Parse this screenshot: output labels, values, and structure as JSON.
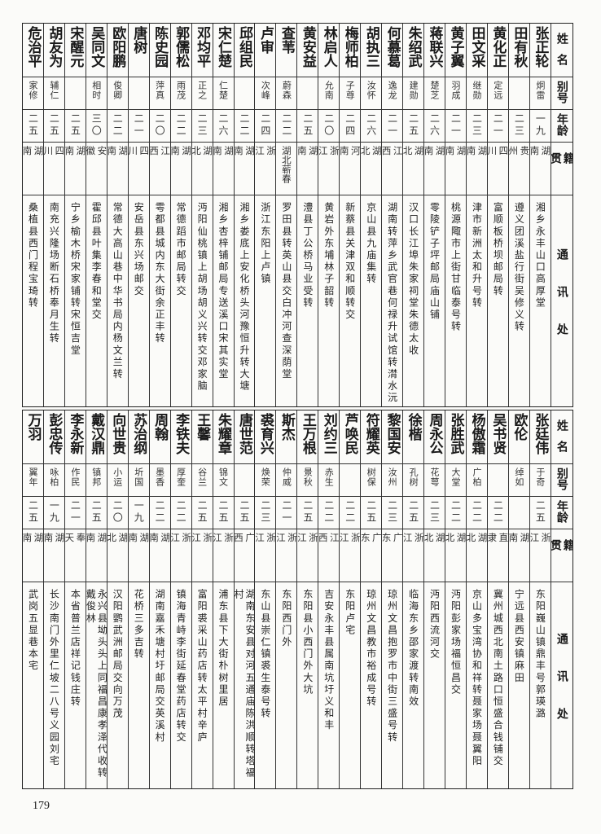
{
  "headers": {
    "name": "姓名",
    "alias": "别号",
    "age": "年龄",
    "origin": "籍贯",
    "address": "通讯处"
  },
  "tables": [
    {
      "rows": [
        {
          "name": "张正轮",
          "alias": "炯雷",
          "age": "一九",
          "origin": "湖南",
          "address": "湘乡永丰山口高厚堂"
        },
        {
          "name": "田有秋",
          "alias": "",
          "age": "二三",
          "origin": "贵州",
          "address": "遵义团溪盐行街吴修义转"
        },
        {
          "name": "黄化正",
          "alias": "定远",
          "age": "二一",
          "origin": "四川",
          "address": "富顺板桥坝邮局转"
        },
        {
          "name": "田文采",
          "alias": "继勋",
          "age": "二三",
          "origin": "湖南",
          "address": "津市新洲太和升号转"
        },
        {
          "name": "黄子翼",
          "alias": "羽成",
          "age": "二一",
          "origin": "湖南",
          "address": "桃源陬市上街甘临泰号转"
        },
        {
          "name": "蒋联兴",
          "alias": "楚芝",
          "age": "二六",
          "origin": "湖南",
          "address": "零陵铲子坪邮局庙山铺"
        },
        {
          "name": "朱绍武",
          "alias": "建勋",
          "age": "二五",
          "origin": "湖北",
          "address": "汉口长江埠朱家祠堂朱德太收"
        },
        {
          "name": "何慕葛",
          "alias": "逸龙",
          "age": "二一",
          "origin": "江西",
          "address": "湖南转萍乡武官巷何禄升试馆转潸水沅"
        },
        {
          "name": "胡执三",
          "alias": "汝怀",
          "age": "二六",
          "origin": "湖北",
          "address": "京山县九庙集转"
        },
        {
          "name": "梅师柏",
          "alias": "子尊",
          "age": "二四",
          "origin": "河南",
          "address": "新蔡县关津双和顺转交"
        },
        {
          "name": "林启人",
          "alias": "允南",
          "age": "二〇",
          "origin": "浙江",
          "address": "黄岩外东埔林子韶转"
        },
        {
          "name": "黄安益",
          "alias": "",
          "age": "二五",
          "origin": "湖南",
          "address": "澧县丁公桥马业受转"
        },
        {
          "name": "查苇",
          "alias": "蔚森",
          "age": "二二",
          "origin": "湖北蕲春",
          "address": "罗田县转英山县交白冲河查深荫堂"
        },
        {
          "name": "卢审",
          "alias": "次峰",
          "age": "二四",
          "origin": "浙江",
          "address": "浙江东阳上卢镇"
        },
        {
          "name": "邱组民",
          "alias": "",
          "age": "二二",
          "origin": "湖南",
          "address": "湘乡娄底上安化桥头河豫恒升转大塘"
        },
        {
          "name": "宋仁楚",
          "alias": "仁楚",
          "age": "二六",
          "origin": "湖南",
          "address": "湘乡杏梓铺邮局专送溪口宋其实堂"
        },
        {
          "name": "邓均平",
          "alias": "正之",
          "age": "二三",
          "origin": "湖北",
          "address": "沔阳仙桃镇上胡场胡义兴转交邓家脑"
        },
        {
          "name": "郭儒松",
          "alias": "雨茂",
          "age": "二二",
          "origin": "湖南",
          "address": "常德蹈市邮局转交"
        },
        {
          "name": "陈史园",
          "alias": "萍真",
          "age": "二〇",
          "origin": "江西",
          "address": "雩都县城内东大街余正丰转"
        },
        {
          "name": "唐树",
          "alias": "",
          "age": "二一",
          "origin": "四川",
          "address": "安岳县东兴场邮交"
        },
        {
          "name": "欧阳鹏",
          "alias": "俊卿",
          "age": "二二",
          "origin": "湖南",
          "address": "常德大高山巷中华书局内杨文兰转"
        },
        {
          "name": "吴同文",
          "alias": "相时",
          "age": "三〇",
          "origin": "安徽",
          "address": "霍邱县叶集李春和堂交"
        },
        {
          "name": "宋醒元",
          "alias": "",
          "age": "二五",
          "origin": "湖南",
          "address": "宁乡榆木桥宋家铺转宋恒吉堂"
        },
        {
          "name": "胡友为",
          "alias": "辅仁",
          "age": "二五",
          "origin": "四川",
          "address": "南充兴隆场断石桥奉月生转"
        },
        {
          "name": "危治平",
          "alias": "家修",
          "age": "二五",
          "origin": "湖南",
          "address": "桑植县西门程宝琦转"
        }
      ]
    },
    {
      "rows": [
        {
          "name": "张廷伟",
          "alias": "于奇",
          "age": "二五",
          "origin": "浙江",
          "address": "东阳巍山镇鼎丰号郭瑛潞"
        },
        {
          "name": "欧伦",
          "alias": "绰如",
          "age": "",
          "origin": "湖南",
          "address": "宁远县西安镇麻田"
        },
        {
          "name": "吴书贤",
          "alias": "",
          "age": "二二",
          "origin": "直隶",
          "address": "冀州城西北南土路口恒盛合钱铺交"
        },
        {
          "name": "杨傲霜",
          "alias": "广柏",
          "age": "二二",
          "origin": "湖北",
          "address": "京山多宝湾协和祥转聂家场聂翼阳"
        },
        {
          "name": "张胜武",
          "alias": "大堂",
          "age": "二二",
          "origin": "湖北",
          "address": "沔阳彭家场福恒昌交"
        },
        {
          "name": "周永公",
          "alias": "花萼",
          "age": "二三",
          "origin": "湖北",
          "address": "沔阳西流河交"
        },
        {
          "name": "徐楷",
          "alias": "孔树",
          "age": "二五",
          "origin": "浙江",
          "address": "临海东乡邵家渡转南效"
        },
        {
          "name": "黎国安",
          "alias": "汝州",
          "age": "二三",
          "origin": "广东",
          "address": "琼州文昌抱罗市中街三盛号转"
        },
        {
          "name": "符耀英",
          "alias": "树保",
          "age": "二五",
          "origin": "广东",
          "address": "琼州文昌教市裕成号转"
        },
        {
          "name": "芦唤民",
          "alias": "",
          "age": "二二",
          "origin": "浙江",
          "address": "东阳卢宅"
        },
        {
          "name": "刘约三",
          "alias": "赤生",
          "age": "二二",
          "origin": "江西",
          "address": "吉安永丰县属南坑圩义和丰"
        },
        {
          "name": "王万根",
          "alias": "景秋",
          "age": "二五",
          "origin": "浙江",
          "address": "东阳县小西门外大坑"
        },
        {
          "name": "斯杰",
          "alias": "仲威",
          "age": "二一",
          "origin": "浙江",
          "address": "东阳西门外"
        },
        {
          "name": "裘育兴",
          "alias": "焕荣",
          "age": "二三",
          "origin": "浙江",
          "address": "东山县崇仁镇裘生泰号转"
        },
        {
          "name": "唐世范",
          "alias": "",
          "age": "二五",
          "origin": "广西",
          "address": "湖南东安县对河五通庙陈洪顺转塔福村"
        },
        {
          "name": "朱耀章",
          "alias": "锦文",
          "age": "二五",
          "origin": "浙江",
          "address": "浦东县下大街朴树里居"
        },
        {
          "name": "王馨",
          "alias": "谷兰",
          "age": "二五",
          "origin": "浙江",
          "address": "富阳裘采山药店转太平村辛庐"
        },
        {
          "name": "李铁夫",
          "alias": "厚奎",
          "age": "二二",
          "origin": "浙江",
          "address": "镇海青峙李街延春堂药店转交"
        },
        {
          "name": "周翰",
          "alias": "墨香",
          "age": "二二",
          "origin": "湖南",
          "address": "湖南嘉禾塘村圩邮局交英溪村"
        },
        {
          "name": "苏治纲",
          "alias": "圻国",
          "age": "一九",
          "origin": "湖南",
          "address": "花桥三多吉转"
        },
        {
          "name": "向世贵",
          "alias": "小运",
          "age": "二〇",
          "origin": "湖北",
          "address": "汉阳鹦武洲邮局交向万茂"
        },
        {
          "name": "戴汉鼎",
          "alias": "镇邦",
          "age": "二五",
          "origin": "湖南",
          "address": "永兴县坳头头上同福昌康孝泽代收转戴俊林"
        },
        {
          "name": "李永新",
          "alias": "作民",
          "age": "二一",
          "origin": "奉天",
          "address": "本省普兰店祥记钱庄转"
        },
        {
          "name": "彭忠传",
          "alias": "咏柏",
          "age": "一九",
          "origin": "湖南",
          "address": "长沙南门外里仁坡二八号义园刘宅"
        },
        {
          "name": "万羽",
          "alias": "翼年",
          "age": "二五",
          "origin": "湖南",
          "address": "武岗五显巷本宅"
        }
      ]
    }
  ],
  "page_number": "179"
}
